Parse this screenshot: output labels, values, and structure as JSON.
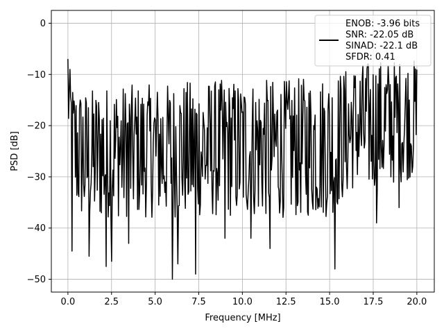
{
  "chart_data": {
    "type": "line",
    "title": "",
    "xlabel": "Frequency [MHz]",
    "ylabel": "PSD [dB]",
    "xlim": [
      -0.95,
      21.0
    ],
    "ylim": [
      -52.5,
      2.5
    ],
    "xticks": [
      0.0,
      2.5,
      5.0,
      7.5,
      10.0,
      12.5,
      15.0,
      17.5,
      20.0
    ],
    "xtick_labels": [
      "0.0",
      "2.5",
      "5.0",
      "7.5",
      "10.0",
      "12.5",
      "15.0",
      "17.5",
      "20.0"
    ],
    "yticks": [
      0,
      -10,
      -20,
      -30,
      -40,
      -50
    ],
    "ytick_labels": [
      "0",
      "−10",
      "−20",
      "−30",
      "−40",
      "−50"
    ],
    "grid": true,
    "legend_position": "top-right",
    "line_color": "#000000",
    "series": [
      {
        "legend_lines": [
          "ENOB: -3.96 bits",
          "SNR: -22.05 dB",
          "SINAD: -22.1 dB",
          "SFDR: 0.41"
        ],
        "x_range": [
          0.0,
          20.0
        ],
        "point_count": 512,
        "envelope_upper": [
          {
            "x": 0.0,
            "y": -7
          },
          {
            "x": 0.3,
            "y": -12
          },
          {
            "x": 1.0,
            "y": -13
          },
          {
            "x": 2.5,
            "y": -12
          },
          {
            "x": 5.0,
            "y": -12
          },
          {
            "x": 7.5,
            "y": -11
          },
          {
            "x": 10.0,
            "y": -11
          },
          {
            "x": 12.5,
            "y": -11
          },
          {
            "x": 15.0,
            "y": -10
          },
          {
            "x": 16.5,
            "y": -8
          },
          {
            "x": 17.5,
            "y": -7
          },
          {
            "x": 20.0,
            "y": -7
          }
        ],
        "envelope_lower": [
          {
            "x": 0.0,
            "y": -20
          },
          {
            "x": 0.3,
            "y": -36
          },
          {
            "x": 1.0,
            "y": -40
          },
          {
            "x": 2.5,
            "y": -38
          },
          {
            "x": 5.0,
            "y": -38
          },
          {
            "x": 7.5,
            "y": -38
          },
          {
            "x": 10.0,
            "y": -38
          },
          {
            "x": 12.5,
            "y": -38
          },
          {
            "x": 15.0,
            "y": -38
          },
          {
            "x": 16.5,
            "y": -32
          },
          {
            "x": 17.5,
            "y": -33
          },
          {
            "x": 20.0,
            "y": -30
          }
        ],
        "notable_minima": [
          {
            "x": 0.25,
            "y": -44.5
          },
          {
            "x": 1.2,
            "y": -45.5
          },
          {
            "x": 2.2,
            "y": -47.5
          },
          {
            "x": 2.5,
            "y": -46.5
          },
          {
            "x": 3.5,
            "y": -43
          },
          {
            "x": 6.0,
            "y": -50
          },
          {
            "x": 6.3,
            "y": -47
          },
          {
            "x": 7.3,
            "y": -49
          },
          {
            "x": 9.0,
            "y": -42
          },
          {
            "x": 10.5,
            "y": -42
          },
          {
            "x": 11.6,
            "y": -44
          },
          {
            "x": 15.3,
            "y": -48
          },
          {
            "x": 17.7,
            "y": -39
          },
          {
            "x": 19.0,
            "y": -36
          }
        ]
      }
    ]
  }
}
